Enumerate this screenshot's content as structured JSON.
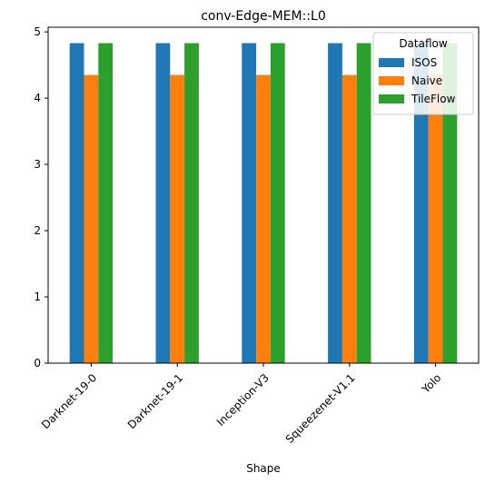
{
  "chart_data": {
    "type": "bar",
    "title": "conv-Edge-MEM::L0",
    "xlabel": "Shape",
    "ylabel": "",
    "categories": [
      "Darknet-19-0",
      "Darknet-19-1",
      "Inception-V3",
      "Squeezenet-V1.1",
      "Yolo"
    ],
    "series": [
      {
        "name": "ISOS",
        "color": "#1f77b4",
        "values": [
          4.83,
          4.83,
          4.83,
          4.83,
          4.83
        ]
      },
      {
        "name": "Naive",
        "color": "#ff7f0e",
        "values": [
          4.35,
          4.35,
          4.35,
          4.35,
          4.35
        ]
      },
      {
        "name": "TileFlow",
        "color": "#2ca02c",
        "values": [
          4.83,
          4.83,
          4.83,
          4.83,
          4.83
        ]
      }
    ],
    "ylim": [
      0,
      5.07
    ],
    "yticks": [
      "0",
      "1",
      "2",
      "3",
      "4",
      "5"
    ],
    "legend": {
      "title": "Dataflow",
      "placement": "upper right"
    },
    "grid": false
  }
}
